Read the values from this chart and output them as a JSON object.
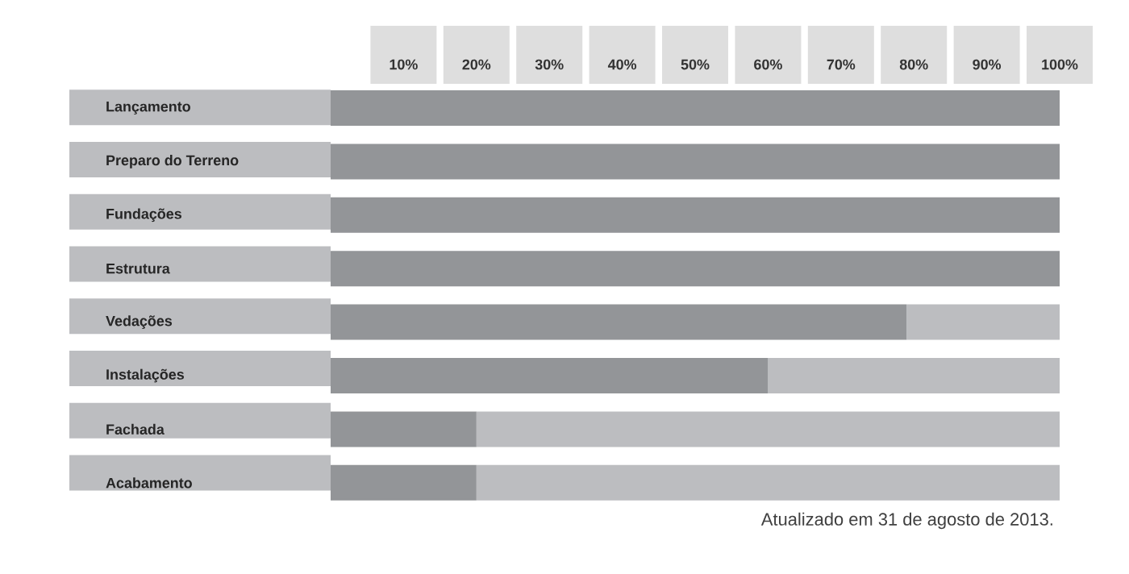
{
  "chart_data": {
    "type": "bar",
    "orientation": "horizontal",
    "stacked": true,
    "categories": [
      "Lançamento",
      "Preparo do Terreno",
      "Fundações",
      "Estrutura",
      "Vedações",
      "Instalações",
      "Fachada",
      "Acabamento"
    ],
    "series": [
      {
        "color": "#939598",
        "values": [
          100,
          100,
          100,
          100,
          79,
          60,
          20,
          20
        ]
      },
      {
        "color": "#bcbdc0",
        "values": [
          0,
          0,
          0,
          0,
          21,
          40,
          80,
          80
        ]
      }
    ],
    "xlim": [
      0,
      100
    ],
    "xticks": [
      {
        "value": 10,
        "label": "10%"
      },
      {
        "value": 20,
        "label": "20%"
      },
      {
        "value": 30,
        "label": "30%"
      },
      {
        "value": 40,
        "label": "40%"
      },
      {
        "value": 50,
        "label": "50%"
      },
      {
        "value": 60,
        "label": "60%"
      },
      {
        "value": 70,
        "label": "70%"
      },
      {
        "value": 80,
        "label": "80%"
      },
      {
        "value": 90,
        "label": "90%"
      },
      {
        "value": 100,
        "label": "100%"
      }
    ],
    "annotations": [
      "Atualizado em 31 de agosto de 2013."
    ]
  }
}
